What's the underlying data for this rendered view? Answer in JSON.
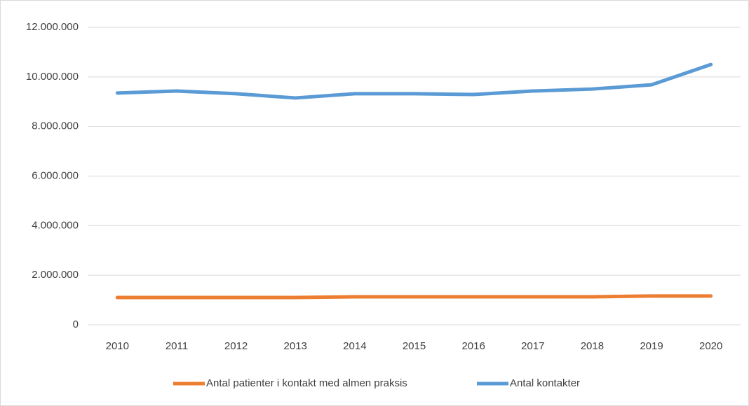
{
  "chart_data": {
    "type": "line",
    "categories": [
      "2010",
      "2011",
      "2012",
      "2013",
      "2014",
      "2015",
      "2016",
      "2017",
      "2018",
      "2019",
      "2020"
    ],
    "series": [
      {
        "name": "Antal patienter i kontakt med almen praksis",
        "color": "#ed7d31",
        "values": [
          1100000,
          1100000,
          1100000,
          1100000,
          1130000,
          1130000,
          1130000,
          1130000,
          1130000,
          1160000,
          1160000
        ]
      },
      {
        "name": "Antal kontakter",
        "color": "#5b9bd5",
        "values": [
          9350000,
          9430000,
          9320000,
          9150000,
          9320000,
          9320000,
          9290000,
          9430000,
          9510000,
          9680000,
          10500000
        ]
      }
    ],
    "ylim": [
      0,
      12000000
    ],
    "yticks": [
      0,
      {
        "value": 2000000,
        "label": "2.000.000"
      },
      {
        "value": 4000000,
        "label": "4.000.000"
      },
      {
        "value": 6000000,
        "label": "6.000.000"
      },
      {
        "value": 8000000,
        "label": "8.000.000"
      },
      {
        "value": 10000000,
        "label": "10.000.000"
      },
      {
        "value": 12000000,
        "label": "12.000.000"
      }
    ],
    "grid": true,
    "legend": "bottom"
  }
}
